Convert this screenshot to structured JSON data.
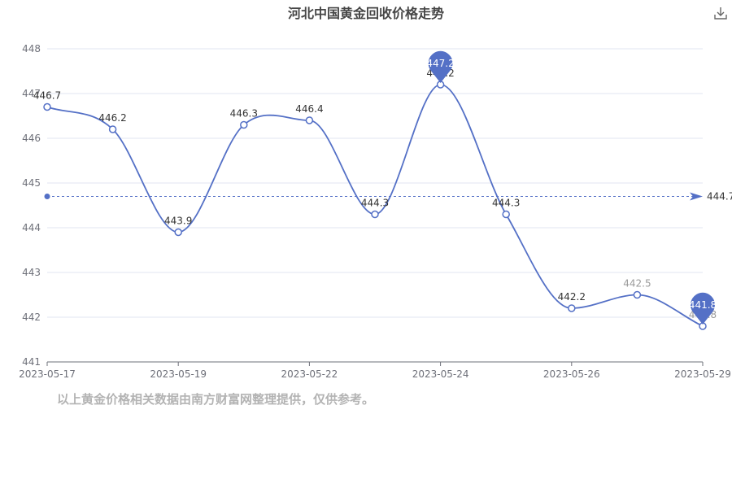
{
  "title": "河北中国黄金回收价格走势",
  "footnote": "以上黄金价格相关数据由南方财富网整理提供，仅供参考。",
  "download_icon": "download-icon",
  "colors": {
    "line": "#5470c6",
    "grid": "#e0e6f1",
    "axis": "#6e7079",
    "title": "#464646",
    "footnote": "#b3b3b3"
  },
  "chart_data": {
    "type": "line",
    "title": "河北中国黄金回收价格走势",
    "xlabel": "",
    "ylabel": "",
    "x_tick_labels": [
      "2023-05-17",
      "2023-05-19",
      "2023-05-22",
      "2023-05-24",
      "2023-05-26",
      "2023-05-29"
    ],
    "y_tick_labels": [
      "441",
      "442",
      "443",
      "444",
      "445",
      "446",
      "447",
      "448"
    ],
    "ylim": [
      441,
      448
    ],
    "grid": true,
    "smooth": true,
    "series": [
      {
        "values": [
          446.7,
          446.2,
          443.9,
          446.3,
          446.4,
          444.3,
          447.2,
          444.3,
          442.2,
          442.5,
          441.8
        ]
      }
    ],
    "point_labels": [
      "446.7",
      "446.2",
      "443.9",
      "446.3",
      "446.4",
      "444.3",
      "447.2",
      "444.3",
      "442.2",
      "442.5",
      "441.8"
    ],
    "max_point": {
      "index": 6,
      "value": 447.2,
      "label": "447.2"
    },
    "min_point": {
      "index": 10,
      "value": 441.8,
      "label": "441.8"
    },
    "average": {
      "value": 444.7,
      "label": "444.7"
    }
  }
}
